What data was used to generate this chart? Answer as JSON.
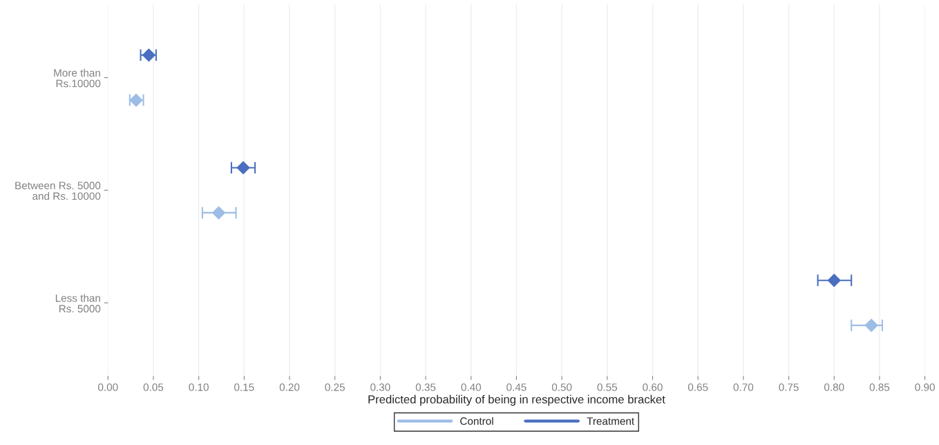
{
  "chart_data": {
    "type": "scatter",
    "orientation": "horizontal",
    "xlabel": "Predicted probability of being in respective income bracket",
    "categories": [
      "More than\nRs.10000",
      "Between Rs. 5000\nand Rs. 10000",
      "Less than\nRs. 5000"
    ],
    "series": [
      {
        "name": "Control",
        "color": "#9dbde6",
        "values": [
          0.031,
          0.122,
          0.841
        ],
        "errors": [
          [
            0.024,
            0.039
          ],
          [
            0.104,
            0.141
          ],
          [
            0.819,
            0.853
          ]
        ]
      },
      {
        "name": "Treatment",
        "color": "#4a6fc0",
        "values": [
          0.045,
          0.149,
          0.8
        ],
        "errors": [
          [
            0.036,
            0.053
          ],
          [
            0.136,
            0.162
          ],
          [
            0.782,
            0.819
          ]
        ]
      }
    ],
    "xlim": [
      0,
      0.9
    ],
    "xticks": [
      {
        "value": 0,
        "label": "0.00"
      },
      0.05,
      {
        "value": 0.1,
        "label": "0.10"
      },
      0.15,
      {
        "value": 0.2,
        "label": "0.20"
      },
      0.25,
      {
        "value": 0.3,
        "label": "0.30"
      },
      0.35,
      {
        "value": 0.4,
        "label": "0.40"
      },
      0.45,
      {
        "value": 0.5,
        "label": "0.50"
      },
      0.55,
      {
        "value": 0.6,
        "label": "0.60"
      },
      0.65,
      {
        "value": 0.7,
        "label": "0.70"
      },
      0.75,
      {
        "value": 0.8,
        "label": "0.80"
      },
      0.85,
      {
        "value": 0.9,
        "label": "0.90"
      }
    ],
    "grid": "x",
    "legend": "bottom",
    "marker": "diamond"
  }
}
